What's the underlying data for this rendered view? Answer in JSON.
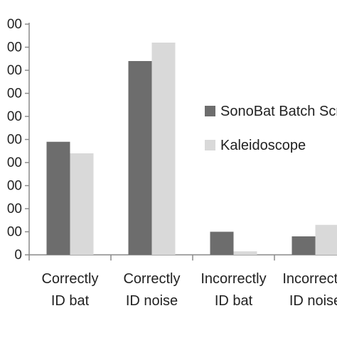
{
  "chart_data": {
    "type": "bar",
    "categories": [
      "Correctly ID bat",
      "Correctly ID noise",
      "Incorrectly ID bat",
      "Incorrectly ID noise"
    ],
    "category_lines": [
      [
        "Correctly",
        "ID bat"
      ],
      [
        "Correctly",
        "ID noise"
      ],
      [
        "Incorrectly",
        "ID bat"
      ],
      [
        "Incorrectly",
        "ID noise"
      ]
    ],
    "series": [
      {
        "name": "SonoBat Batch Scrutinizer",
        "color": "#6d6d6d",
        "values": [
          4.9,
          8.4,
          1.0,
          0.8
        ]
      },
      {
        "name": "Kaleidoscope",
        "color": "#d9d9d9",
        "values": [
          4.4,
          9.2,
          0.15,
          1.3
        ]
      }
    ],
    "ylim": [
      0,
      10
    ],
    "ytick_values": [
      0,
      1,
      2,
      3,
      4,
      5,
      6,
      7,
      8,
      9,
      10
    ],
    "ytick_labels": [
      "0",
      "00",
      "00",
      "00",
      "00",
      "00",
      "00",
      "00",
      "00",
      "00",
      "00"
    ],
    "legend_position": "right",
    "grid": false,
    "title": "",
    "xlabel": "",
    "ylabel": ""
  }
}
